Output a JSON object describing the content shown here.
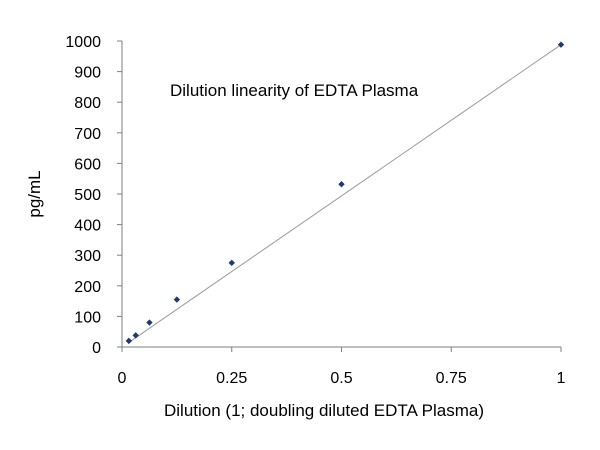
{
  "chart_data": {
    "type": "scatter",
    "title": "Dilution linearity of EDTA Plasma",
    "xlabel": "Dilution (1; doubling diluted EDTA Plasma)",
    "ylabel": "pg/mL",
    "xlim": [
      0,
      1
    ],
    "ylim": [
      0,
      1000
    ],
    "xticks": [
      0,
      0.25,
      0.5,
      0.75,
      1
    ],
    "xtick_labels": [
      "0",
      "0.25",
      "0.5",
      "0.75",
      "1"
    ],
    "yticks": [
      0,
      100,
      200,
      300,
      400,
      500,
      600,
      700,
      800,
      900,
      1000
    ],
    "ytick_labels": [
      "0",
      "100",
      "200",
      "300",
      "400",
      "500",
      "600",
      "700",
      "800",
      "900",
      "1000"
    ],
    "grid": false,
    "legend": "none",
    "series": [
      {
        "x": [
          0.0156,
          0.03125,
          0.0625,
          0.125,
          0.25,
          0.5,
          1
        ],
        "y": [
          20,
          38,
          80,
          155,
          275,
          532,
          988
        ],
        "color": "#1f3a70",
        "marker": "diamond"
      }
    ],
    "trendline": {
      "type": "linear",
      "x": [
        0.0156,
        1
      ],
      "y": [
        15,
        988
      ],
      "color": "#9a9a9a"
    }
  }
}
